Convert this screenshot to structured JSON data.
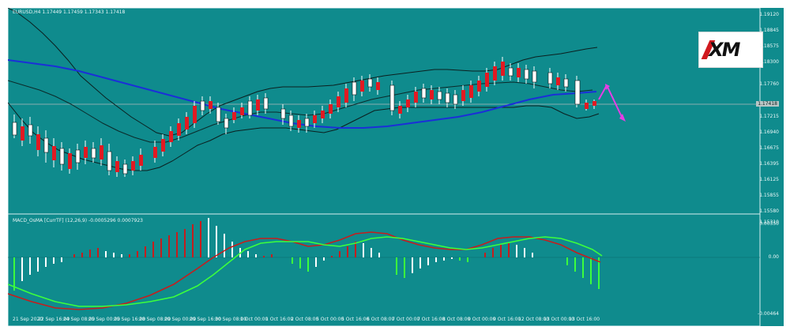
{
  "chart": {
    "symbol_line": "EURUSD,H4  1.17449 1.17459 1.17343 1.17418",
    "indicator_line": "MACD_OsMA [CurrTF] (12,26,9) -0.0005296 0.0007923",
    "logo_text": "XM",
    "price_axis_labels": [
      "1.19120",
      "1.18845",
      "1.18575",
      "1.18300",
      "1.17760",
      "1.17418",
      "1.17215",
      "1.16940",
      "1.16675",
      "1.16395",
      "1.16125",
      "1.15855",
      "1.15580",
      "1.15310"
    ],
    "macd_axis_labels": [
      "0.00350",
      "0.00",
      "-0.00464"
    ],
    "time_axis_labels": [
      "21 Sep 2020",
      "22 Sep 16:00",
      "24 Sep 08:00",
      "25 Sep 00:00",
      "25 Sep 16:00",
      "28 Sep 08:00",
      "29 Sep 00:00",
      "29 Sep 16:00",
      "30 Sep 08:00",
      "1 Oct 00:00",
      "1 Oct 16:00",
      "2 Oct 08:00",
      "5 Oct 00:00",
      "5 Oct 16:00",
      "6 Oct 08:00",
      "7 Oct 00:00",
      "7 Oct 16:00",
      "8 Oct 08:00",
      "9 Oct 00:00",
      "9 Oct 16:00",
      "12 Oct 08:00",
      "13 Oct 00:00",
      "13 Oct 16:00"
    ]
  },
  "colors": {
    "background": "#0f8b8d",
    "bull_candle": "#ffffff",
    "bear_candle": "#e11a22",
    "ma_blue": "#1b2fd8",
    "band_black": "#0b1f1f",
    "macd_red": "#c61d1d",
    "signal_green": "#3cff3c",
    "arrow_magenta": "#e63de6"
  }
}
